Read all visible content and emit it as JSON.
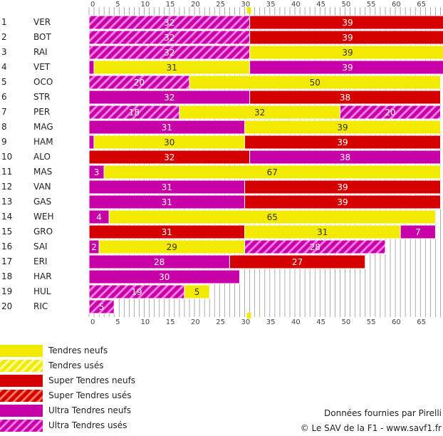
{
  "colors": {
    "tendres": "#f2ea00",
    "super_tendres": "#d40000",
    "ultra_tendres": "#c800a8",
    "grid": "#999999"
  },
  "legend": [
    {
      "label": "Tendres neufs",
      "compound": "tendres",
      "used": false
    },
    {
      "label": "Tendres usés",
      "compound": "tendres",
      "used": true
    },
    {
      "label": "Super Tendres neufs",
      "compound": "super_tendres",
      "used": false
    },
    {
      "label": "Super Tendres usés",
      "compound": "super_tendres",
      "used": true
    },
    {
      "label": "Ultra Tendres neufs",
      "compound": "ultra_tendres",
      "used": false
    },
    {
      "label": "Ultra Tendres usés",
      "compound": "ultra_tendres",
      "used": true
    }
  ],
  "credits": {
    "source": "Données fournies par Pirelli",
    "copyright": "© Le SAV de la F1 - www.savf1.fr"
  },
  "chart_data": {
    "type": "bar",
    "orientation": "horizontal-stacked",
    "x_range": [
      0,
      70
    ],
    "x_ticks": [
      "0",
      "5",
      "10",
      "15",
      "20",
      "25",
      "30",
      "35",
      "40",
      "45",
      "50",
      "55",
      "60",
      "65"
    ],
    "race_laps": 70,
    "marker_lap": 32,
    "drivers": [
      {
        "pos": "1",
        "name": "VER",
        "stints": [
          {
            "laps": 32,
            "compound": "ultra_tendres",
            "used": true
          },
          {
            "laps": 39,
            "compound": "super_tendres",
            "used": false
          }
        ]
      },
      {
        "pos": "2",
        "name": "BOT",
        "stints": [
          {
            "laps": 32,
            "compound": "ultra_tendres",
            "used": true
          },
          {
            "laps": 39,
            "compound": "super_tendres",
            "used": false
          }
        ]
      },
      {
        "pos": "3",
        "name": "RAI",
        "stints": [
          {
            "laps": 32,
            "compound": "ultra_tendres",
            "used": true
          },
          {
            "laps": 39,
            "compound": "tendres",
            "used": false
          }
        ]
      },
      {
        "pos": "4",
        "name": "VET",
        "stints": [
          {
            "laps": 1,
            "compound": "ultra_tendres",
            "used": false
          },
          {
            "laps": 31,
            "compound": "tendres",
            "used": false
          },
          {
            "laps": 39,
            "compound": "ultra_tendres",
            "used": false
          }
        ]
      },
      {
        "pos": "5",
        "name": "OCO",
        "stints": [
          {
            "laps": 20,
            "compound": "ultra_tendres",
            "used": true
          },
          {
            "laps": 50,
            "compound": "tendres",
            "used": false
          }
        ]
      },
      {
        "pos": "6",
        "name": "STR",
        "stints": [
          {
            "laps": 32,
            "compound": "ultra_tendres",
            "used": false
          },
          {
            "laps": 38,
            "compound": "super_tendres",
            "used": false
          }
        ]
      },
      {
        "pos": "7",
        "name": "PER",
        "stints": [
          {
            "laps": 18,
            "compound": "ultra_tendres",
            "used": true
          },
          {
            "laps": 32,
            "compound": "tendres",
            "used": false
          },
          {
            "laps": 20,
            "compound": "ultra_tendres",
            "used": true
          }
        ]
      },
      {
        "pos": "8",
        "name": "MAG",
        "stints": [
          {
            "laps": 31,
            "compound": "ultra_tendres",
            "used": false
          },
          {
            "laps": 39,
            "compound": "tendres",
            "used": false
          }
        ]
      },
      {
        "pos": "9",
        "name": "HAM",
        "stints": [
          {
            "laps": 1,
            "compound": "ultra_tendres",
            "used": false
          },
          {
            "laps": 30,
            "compound": "tendres",
            "used": false
          },
          {
            "laps": 39,
            "compound": "super_tendres",
            "used": false
          }
        ]
      },
      {
        "pos": "10",
        "name": "ALO",
        "stints": [
          {
            "laps": 32,
            "compound": "super_tendres",
            "used": false
          },
          {
            "laps": 38,
            "compound": "ultra_tendres",
            "used": false
          }
        ]
      },
      {
        "pos": "11",
        "name": "MAS",
        "stints": [
          {
            "laps": 3,
            "compound": "ultra_tendres",
            "used": false
          },
          {
            "laps": 67,
            "compound": "tendres",
            "used": false
          }
        ]
      },
      {
        "pos": "12",
        "name": "VAN",
        "stints": [
          {
            "laps": 31,
            "compound": "ultra_tendres",
            "used": false
          },
          {
            "laps": 39,
            "compound": "super_tendres",
            "used": false
          }
        ]
      },
      {
        "pos": "13",
        "name": "GAS",
        "stints": [
          {
            "laps": 31,
            "compound": "ultra_tendres",
            "used": false
          },
          {
            "laps": 39,
            "compound": "super_tendres",
            "used": false
          }
        ]
      },
      {
        "pos": "14",
        "name": "WEH",
        "stints": [
          {
            "laps": 4,
            "compound": "ultra_tendres",
            "used": false
          },
          {
            "laps": 65,
            "compound": "tendres",
            "used": false
          }
        ]
      },
      {
        "pos": "15",
        "name": "GRO",
        "stints": [
          {
            "laps": 31,
            "compound": "super_tendres",
            "used": false
          },
          {
            "laps": 31,
            "compound": "tendres",
            "used": false
          },
          {
            "laps": 7,
            "compound": "ultra_tendres",
            "used": false
          }
        ]
      },
      {
        "pos": "16",
        "name": "SAI",
        "stints": [
          {
            "laps": 2,
            "compound": "ultra_tendres",
            "used": false
          },
          {
            "laps": 29,
            "compound": "tendres",
            "used": false
          },
          {
            "laps": 28,
            "compound": "ultra_tendres",
            "used": true
          }
        ]
      },
      {
        "pos": "17",
        "name": "ERI",
        "stints": [
          {
            "laps": 28,
            "compound": "ultra_tendres",
            "used": false
          },
          {
            "laps": 27,
            "compound": "super_tendres",
            "used": false
          }
        ]
      },
      {
        "pos": "18",
        "name": "HAR",
        "stints": [
          {
            "laps": 30,
            "compound": "ultra_tendres",
            "used": false
          }
        ]
      },
      {
        "pos": "19",
        "name": "HUL",
        "stints": [
          {
            "laps": 19,
            "compound": "ultra_tendres",
            "used": true
          },
          {
            "laps": 5,
            "compound": "tendres",
            "used": false
          }
        ]
      },
      {
        "pos": "20",
        "name": "RIC",
        "stints": [
          {
            "laps": 5,
            "compound": "ultra_tendres",
            "used": true
          }
        ]
      }
    ]
  }
}
